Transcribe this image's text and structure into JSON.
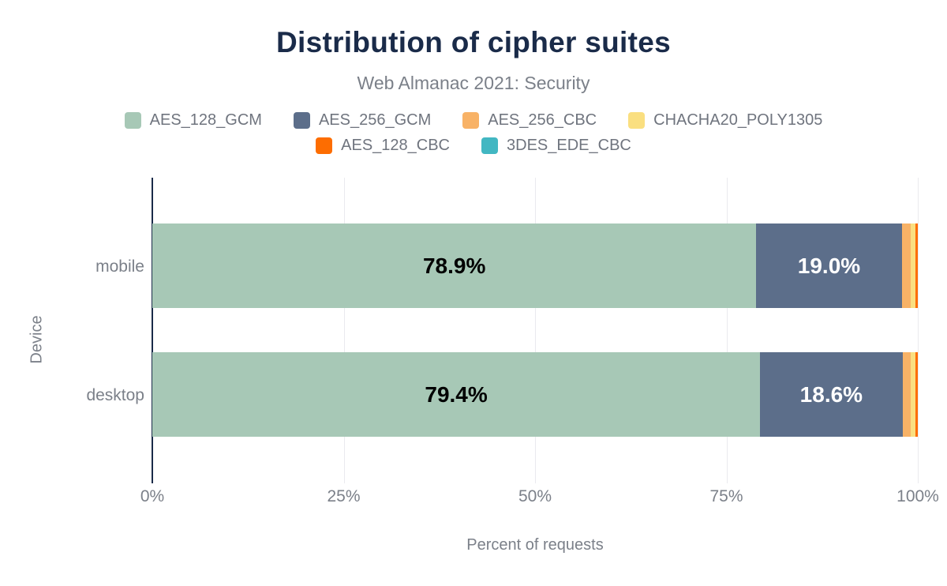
{
  "chart_data": {
    "type": "bar",
    "stacked": true,
    "orientation": "horizontal",
    "title": "Distribution of cipher suites",
    "subtitle": "Web Almanac 2021: Security",
    "xlabel": "Percent of requests",
    "ylabel": "Device",
    "categories": [
      "mobile",
      "desktop"
    ],
    "series": [
      {
        "name": "AES_128_GCM",
        "color": "#a7c8b6",
        "label_color": "#000000",
        "values": [
          78.9,
          79.4
        ]
      },
      {
        "name": "AES_256_GCM",
        "color": "#5c6e8a",
        "label_color": "#ffffff",
        "values": [
          19.0,
          18.6
        ]
      },
      {
        "name": "AES_256_CBC",
        "color": "#f8b266",
        "label_color": "#000000",
        "values": [
          1.2,
          1.1
        ]
      },
      {
        "name": "CHACHA20_POLY1305",
        "color": "#fadf80",
        "label_color": "#000000",
        "values": [
          0.6,
          0.6
        ]
      },
      {
        "name": "AES_128_CBC",
        "color": "#fd6d01",
        "label_color": "#ffffff",
        "values": [
          0.3,
          0.3
        ]
      },
      {
        "name": "3DES_EDE_CBC",
        "color": "#42b7c2",
        "label_color": "#ffffff",
        "values": [
          0.0,
          0.0
        ]
      }
    ],
    "shown_data_labels": [
      "78.9%",
      "19.0%",
      "79.4%",
      "18.6%"
    ],
    "x_ticks": [
      {
        "label": "0%",
        "value": 0
      },
      {
        "label": "25%",
        "value": 25
      },
      {
        "label": "50%",
        "value": 50
      },
      {
        "label": "75%",
        "value": 75
      },
      {
        "label": "100%",
        "value": 100
      }
    ],
    "xlim": [
      0,
      100
    ],
    "grid": true,
    "legend_position": "top",
    "data_label_min_value": 5
  },
  "colors": {
    "title": "#1a2b49",
    "axis_line": "#1a2b49",
    "gridline": "#eaeaee",
    "muted_text": "#7b8089",
    "legend_text": "#6f747e",
    "background": "#ffffff"
  }
}
